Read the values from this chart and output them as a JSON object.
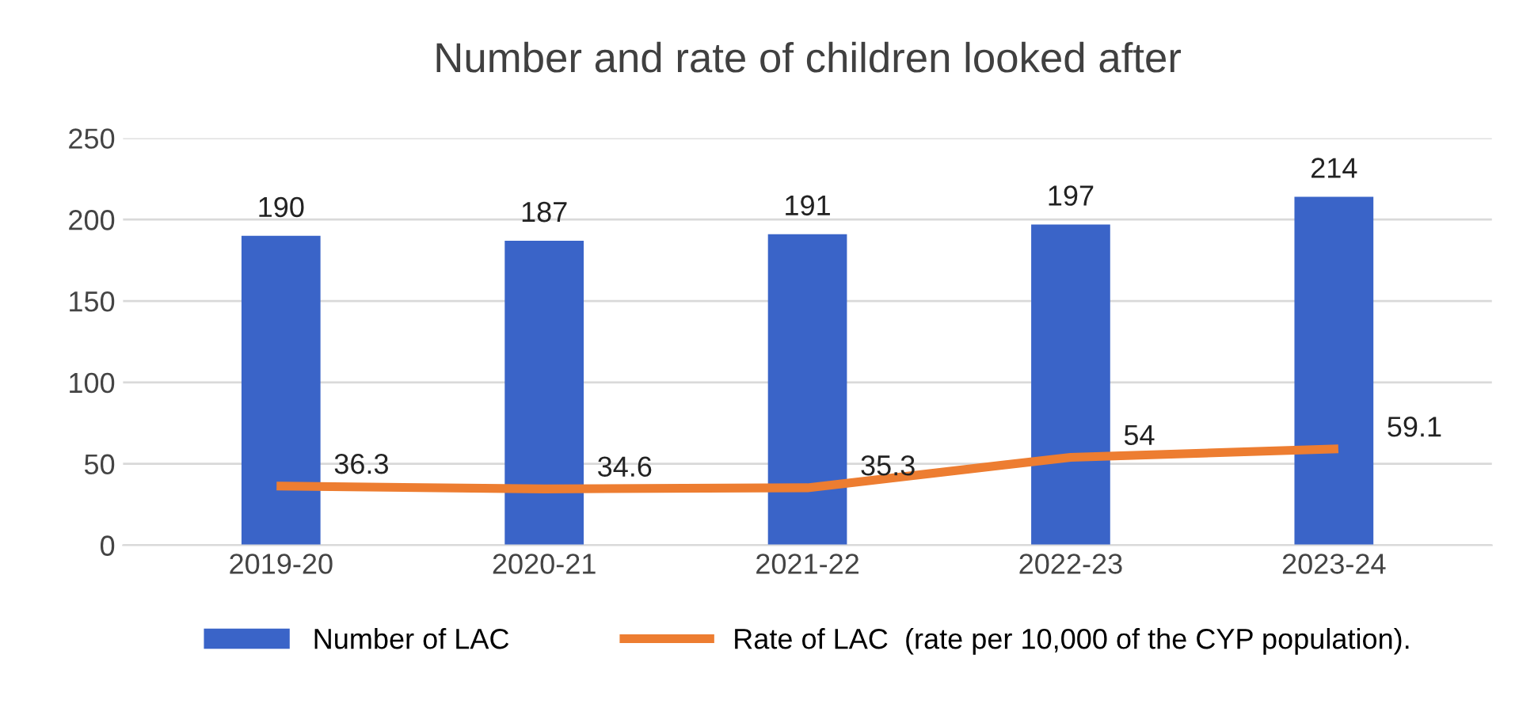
{
  "chart_data": {
    "type": "bar",
    "title": "Number and rate of children looked after",
    "categories": [
      "2019-20",
      "2020-21",
      "2021-22",
      "2022-23",
      "2023-24"
    ],
    "series": [
      {
        "name": "Number of LAC",
        "color": "#3a64c8",
        "values": [
          190,
          187,
          191,
          197,
          214
        ],
        "value_labels": [
          "190",
          "187",
          "191",
          "197",
          "214"
        ]
      },
      {
        "name": "Rate of LAC  (rate per 10,000 of the CYP population).",
        "type": "line",
        "color": "#ed7d31",
        "values": [
          36.3,
          34.6,
          35.3,
          54,
          59.1
        ],
        "value_labels": [
          "36.3",
          "34.6",
          "35.3",
          "54",
          "59.1"
        ]
      }
    ],
    "ylim": [
      0,
      250
    ],
    "yticks": [
      0,
      50,
      100,
      150,
      200,
      250
    ],
    "grid": "y",
    "legend": "bottom"
  }
}
